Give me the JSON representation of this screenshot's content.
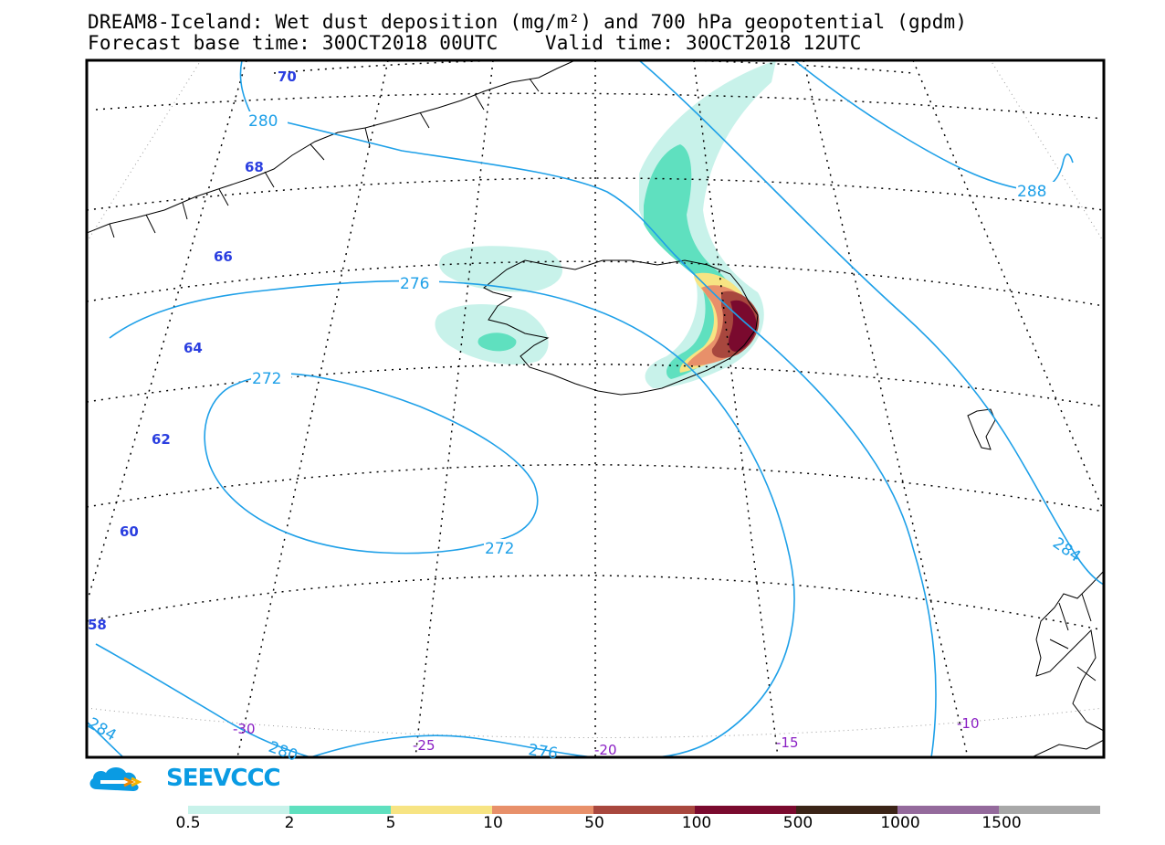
{
  "title": {
    "line1": "DREAM8-Iceland: Wet dust deposition (mg/m²) and 700 hPa geopotential (gpdm)",
    "line2": "Forecast base time: 30OCT2018 00UTC    Valid time: 30OCT2018 12UTC"
  },
  "map": {
    "latitude_labels": [
      "70",
      "68",
      "66",
      "64",
      "62",
      "60",
      "58"
    ],
    "longitude_labels": [
      "-30",
      "-25",
      "-20",
      "-15",
      "-10"
    ],
    "contour_labels": [
      "280",
      "276",
      "272",
      "272",
      "288",
      "284",
      "284",
      "280",
      "276"
    ],
    "colors": {
      "contour": "#1ea0e8",
      "graticule": "#000000",
      "coastline": "#000000"
    }
  },
  "logo": {
    "text": "SEEVCCC",
    "icon": "cloud-logo-icon",
    "color": "#0a9be3"
  },
  "legend": {
    "labels": [
      "0.5",
      "2",
      "5",
      "10",
      "50",
      "100",
      "500",
      "1000",
      "1500"
    ],
    "colors": [
      "#c8f2ea",
      "#5fe0bf",
      "#f7e483",
      "#e8906a",
      "#a8473e",
      "#7a0a2e",
      "#3b2417",
      "#946a9c",
      "#a8a8a8"
    ]
  }
}
